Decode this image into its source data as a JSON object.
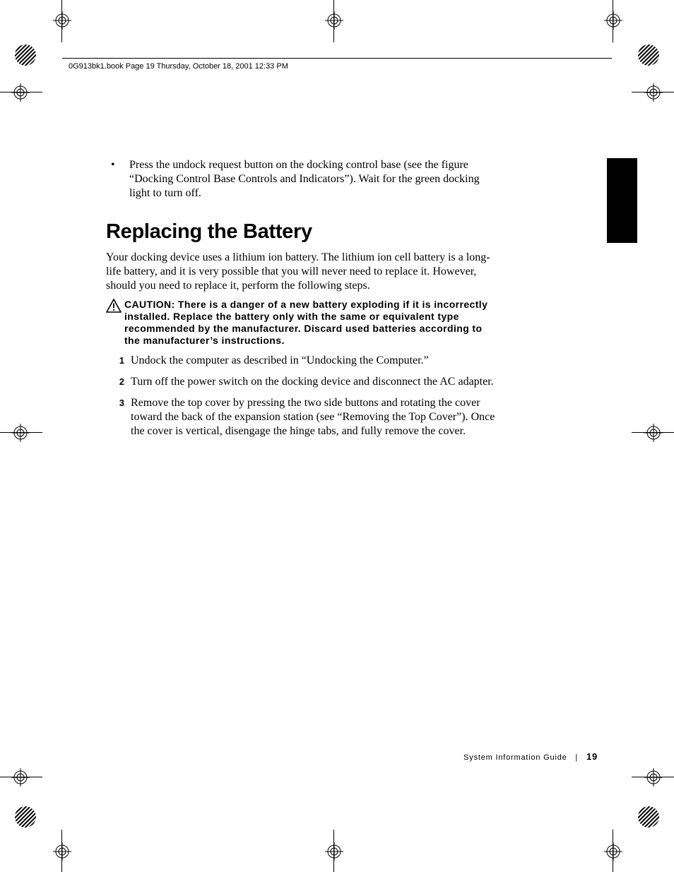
{
  "header": {
    "text": "0G913bk1.book  Page 19  Thursday, October 18, 2001  12:33 PM"
  },
  "bullet": {
    "text": "Press the undock request button on the docking control base (see the figure “Docking Control Base Controls and Indicators”). Wait for the green docking light to turn off."
  },
  "heading": "Replacing the Battery",
  "intro": "Your docking device uses a lithium ion battery. The lithium ion cell battery is a long-life battery, and it is very possible that you will never need to replace it. However, should you need to replace it, perform the following steps.",
  "caution": {
    "label": "CAUTION:",
    "text": " There is a danger of a new battery exploding if it is incorrectly installed. Replace the battery only with the same or equivalent type recommended by the manufacturer. Discard used batteries according to the manufacturer’s instructions."
  },
  "steps": [
    {
      "num": "1",
      "text": "Undock the computer as described in “Undocking the Computer.”"
    },
    {
      "num": "2",
      "text": "Turn off the power switch on the docking device and disconnect the AC adapter."
    },
    {
      "num": "3",
      "text": "Remove the top cover by pressing the two side buttons and rotating the cover toward the back of the expansion station (see “Removing the Top Cover”). Once the cover is vertical, disengage the hinge tabs, and fully remove the cover."
    }
  ],
  "footer": {
    "title": "System Information Guide",
    "page": "19"
  },
  "colors": {
    "text": "#000000",
    "background": "#ffffff"
  },
  "typography": {
    "body_family": "Georgia/serif",
    "body_size_pt": 12,
    "heading_family": "Arial Black/condensed sans",
    "heading_size_pt": 22,
    "caution_family": "Arial bold",
    "caution_size_pt": 10.5,
    "header_size_pt": 8,
    "footer_size_pt": 8.5
  }
}
